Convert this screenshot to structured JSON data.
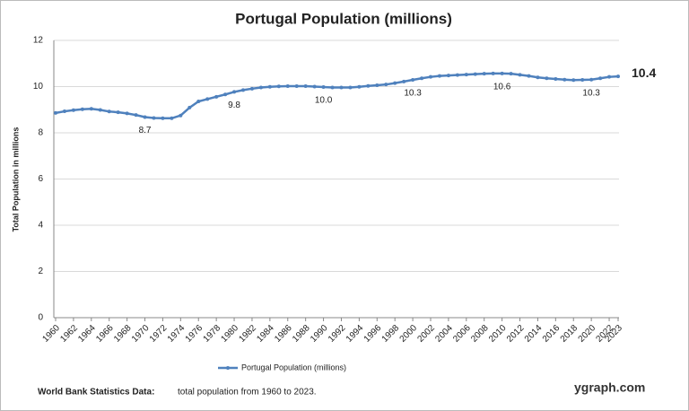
{
  "chart_data": {
    "type": "line",
    "title": "Portugal Population (millions)",
    "y_label": "Total Population  in millions",
    "categories": [
      "1960",
      null,
      "1962",
      null,
      "1964",
      null,
      "1966",
      null,
      "1968",
      null,
      "1970",
      null,
      "1972",
      null,
      "1974",
      null,
      "1976",
      null,
      "1978",
      null,
      "1980",
      null,
      "1982",
      null,
      "1984",
      null,
      "1986",
      null,
      "1988",
      null,
      "1990",
      null,
      "1992",
      null,
      "1994",
      null,
      "1996",
      null,
      "1998",
      null,
      "2000",
      null,
      "2002",
      null,
      "2004",
      null,
      "2006",
      null,
      "2008",
      null,
      "2010",
      null,
      "2012",
      null,
      "2014",
      null,
      "2016",
      null,
      "2018",
      null,
      "2020",
      null,
      "2022",
      "2023"
    ],
    "series": [
      {
        "name": "Portugal Population (millions)",
        "color": "#4f81bd",
        "values": [
          8.86,
          8.93,
          8.98,
          9.02,
          9.04,
          8.99,
          8.92,
          8.89,
          8.84,
          8.77,
          8.68,
          8.64,
          8.63,
          8.63,
          8.75,
          9.09,
          9.36,
          9.46,
          9.56,
          9.66,
          9.77,
          9.85,
          9.91,
          9.96,
          9.99,
          10.01,
          10.02,
          10.02,
          10.02,
          10.0,
          9.98,
          9.96,
          9.96,
          9.96,
          9.99,
          10.03,
          10.06,
          10.09,
          10.15,
          10.22,
          10.29,
          10.36,
          10.42,
          10.46,
          10.48,
          10.5,
          10.52,
          10.54,
          10.56,
          10.57,
          10.57,
          10.56,
          10.51,
          10.46,
          10.4,
          10.36,
          10.33,
          10.3,
          10.28,
          10.29,
          10.3,
          10.36,
          10.42,
          10.44
        ],
        "value_labels": [
          null,
          null,
          null,
          null,
          null,
          null,
          null,
          null,
          null,
          null,
          "8.7",
          null,
          null,
          null,
          null,
          null,
          null,
          null,
          null,
          null,
          "9.8",
          null,
          null,
          null,
          null,
          null,
          null,
          null,
          null,
          null,
          "10.0",
          null,
          null,
          null,
          null,
          null,
          null,
          null,
          null,
          null,
          "10.3",
          null,
          null,
          null,
          null,
          null,
          null,
          null,
          null,
          null,
          "10.6",
          null,
          null,
          null,
          null,
          null,
          null,
          null,
          null,
          null,
          "10.3",
          null,
          null,
          "10.4"
        ]
      }
    ],
    "ylim": [
      0,
      12
    ],
    "yticks": [
      0,
      2,
      4,
      6,
      8,
      10,
      12
    ],
    "grid": true,
    "legend": "bottom",
    "source_label": "World Bank Statistics Data:",
    "source": "total population from 1960 to 2023.",
    "brand": "ygraph.com"
  }
}
